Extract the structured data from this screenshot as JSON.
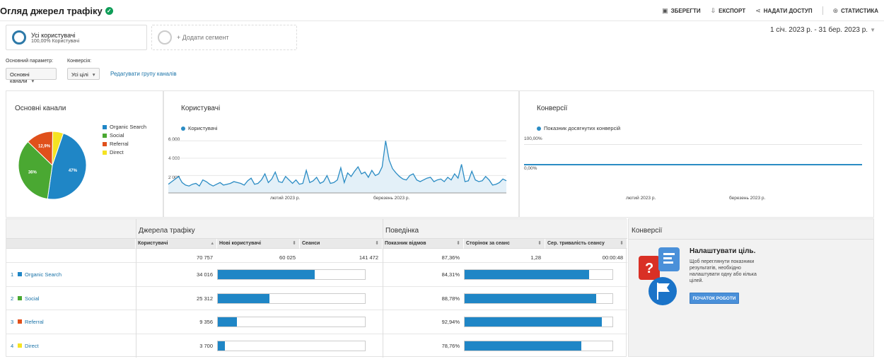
{
  "header": {
    "title": "Огляд джерел трафіку",
    "actions": {
      "save": "ЗБЕРЕГТИ",
      "export": "ЕКСПОРТ",
      "share": "НАДАТИ ДОСТУП",
      "insights": "СТАТИСТИКА"
    }
  },
  "segments": {
    "all_users": {
      "name": "Усі користувачі",
      "sub": "100,00% Користувачі"
    },
    "add_segment": "+ Додати сегмент"
  },
  "date_range": "1 січ. 2023 р. - 31 бер. 2023 р.",
  "controls": {
    "primary_dimension_label": "Основний параметр:",
    "primary_dimension_value": "Основні канали",
    "conversion_label": "Конверсія:",
    "conversion_value": "Усі цілі",
    "edit_channel_group": "Редагувати групу каналів"
  },
  "pie_panel": {
    "title": "Основні канали",
    "legend": [
      {
        "label": "Organic Search",
        "color": "#1f86c6"
      },
      {
        "label": "Social",
        "color": "#4aa832"
      },
      {
        "label": "Referral",
        "color": "#e0501b"
      },
      {
        "label": "Direct",
        "color": "#f5e322"
      }
    ],
    "slice_labels": {
      "organic": "47%",
      "social": "36%",
      "referral": "12,9%"
    }
  },
  "users_panel": {
    "title": "Користувачі",
    "legend": "Користувачі",
    "y_ticks": [
      "6 000",
      "4 000",
      "2 000"
    ],
    "x_labels": [
      "лютий 2023 р.",
      "березень 2023 р."
    ]
  },
  "conv_chart_panel": {
    "title": "Конверсії",
    "legend": "Показник досягнутих конверсій",
    "y_ticks": [
      "100,00%",
      "0,00%"
    ],
    "x_labels": [
      "лютий 2023 р.",
      "березень 2023 р."
    ]
  },
  "chart_data": [
    {
      "type": "pie",
      "categories": [
        "Organic Search",
        "Social",
        "Referral",
        "Direct"
      ],
      "values": [
        48.1,
        35.8,
        13.2,
        5.2
      ],
      "title": "Основні канали"
    },
    {
      "type": "line",
      "title": "Користувачі",
      "ylim": [
        0,
        7000
      ],
      "y_ticks": [
        2000,
        4000,
        6000
      ],
      "series": [
        {
          "name": "Користувачі",
          "values": [
            1000,
            1300,
            1600,
            1900,
            1200,
            900,
            800,
            1000,
            1100,
            800,
            1500,
            1300,
            1000,
            800,
            1000,
            1200,
            900,
            1000,
            1100,
            1300,
            1200,
            1100,
            900,
            1400,
            1700,
            1000,
            1100,
            1500,
            2200,
            1200,
            1600,
            2400,
            1300,
            1200,
            1900,
            1500,
            1100,
            1500,
            1000,
            1100,
            2600,
            1200,
            1400,
            1800,
            1100,
            1300,
            2000,
            1100,
            1200,
            1500,
            2900,
            1200,
            2300,
            1900,
            2500,
            3000,
            2200,
            2400,
            1800,
            2600,
            2000,
            2200,
            3000,
            6000,
            3800,
            2800,
            2300,
            1900,
            1600,
            1500,
            2000,
            2200,
            1500,
            1300,
            1500,
            1700,
            1800,
            1300,
            1500,
            1600,
            1300,
            1800,
            1500,
            2200,
            1700,
            3300,
            1300,
            1400,
            2500,
            1500,
            1300,
            1400,
            1900,
            1500,
            900,
            1000,
            1200,
            1600,
            1400
          ]
        }
      ]
    },
    {
      "type": "line",
      "title": "Конверсії",
      "ylim": [
        0,
        100
      ],
      "series": [
        {
          "name": "Показник досягнутих конверсій",
          "values": [
            0,
            0
          ]
        }
      ]
    },
    {
      "type": "table",
      "groups": [
        "Джерела трафіку",
        "Поведінка",
        "Конверсії"
      ],
      "columns": [
        "Користувачі",
        "Нові користувачі",
        "Сеанси",
        "Показник відмов",
        "Сторінок за сеанс",
        "Сер. тривалість сеансу"
      ],
      "totals": [
        "70 757",
        "60 025",
        "141 472",
        "87,36%",
        "1,28",
        "00:00:48"
      ],
      "rows": [
        {
          "num": "1",
          "name": "Organic Search",
          "color": "#1f86c6",
          "users": "34 016",
          "new_users_fraction": 0.66,
          "bounce": "84,31%",
          "bounce_fraction": 0.8431
        },
        {
          "num": "2",
          "name": "Social",
          "color": "#4aa832",
          "users": "25 312",
          "new_users_fraction": 0.35,
          "bounce": "88,78%",
          "bounce_fraction": 0.8878
        },
        {
          "num": "3",
          "name": "Referral",
          "color": "#e0501b",
          "users": "9 356",
          "new_users_fraction": 0.13,
          "bounce": "92,94%",
          "bounce_fraction": 0.9294
        },
        {
          "num": "4",
          "name": "Direct",
          "color": "#f5e322",
          "users": "3 700",
          "new_users_fraction": 0.05,
          "bounce": "78,76%",
          "bounce_fraction": 0.7876
        }
      ]
    }
  ],
  "table": {
    "group_sources": "Джерела трафіку",
    "group_behavior": "Поведінка",
    "group_conversions": "Конверсії",
    "col_users": "Користувачі",
    "col_new_users": "Нові користувачі",
    "col_sessions": "Сеанси",
    "col_bounce": "Показник відмов",
    "col_pages": "Сторінок за сеанс",
    "col_duration": "Сер. тривалість сеансу",
    "total_users": "70 757",
    "total_new_users": "60 025",
    "total_sessions": "141 472",
    "total_bounce": "87,36%",
    "total_pages": "1,28",
    "total_duration": "00:00:48",
    "rows": [
      {
        "num": "1",
        "name": "Organic Search",
        "users": "34 016",
        "bounce": "84,31%"
      },
      {
        "num": "2",
        "name": "Social",
        "users": "25 312",
        "bounce": "88,78%"
      },
      {
        "num": "3",
        "name": "Referral",
        "users": "9 356",
        "bounce": "92,94%"
      },
      {
        "num": "4",
        "name": "Direct",
        "users": "3 700",
        "bounce": "78,76%"
      }
    ]
  },
  "conversions_panel": {
    "title": "Налаштувати ціль.",
    "text": "Щоб переглянути показники результатів, необхідно налаштувати одну або кілька цілей.",
    "button": "ПОЧАТОК РОБОТИ"
  },
  "colors": {
    "accent": "#1f86c6",
    "link": "#1a73a8",
    "organic": "#1f86c6",
    "social": "#4aa832",
    "referral": "#e0501b",
    "direct": "#f5e322"
  },
  "icons": [
    "verified-check-icon",
    "save-icon",
    "export-icon",
    "share-icon",
    "insights-icon",
    "goal-illustration-icon"
  ]
}
